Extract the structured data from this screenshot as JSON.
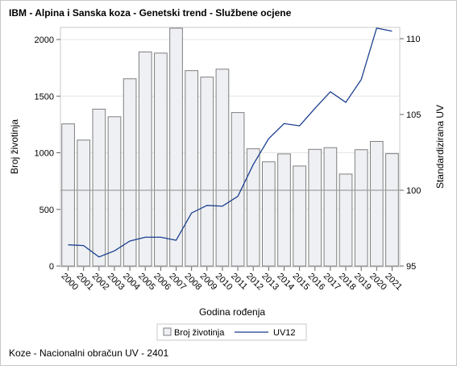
{
  "title": "IBM - Alpina i Sanska koza - Genetski trend - Službene ocjene",
  "footnote": "Koze - Nacionalni obračun UV - 2401",
  "chart_data": {
    "type": "bar",
    "categories": [
      "2000",
      "2001",
      "2002",
      "2003",
      "2004",
      "2005",
      "2006",
      "2007",
      "2008",
      "2009",
      "2010",
      "2011",
      "2012",
      "2013",
      "2014",
      "2015",
      "2016",
      "2017",
      "2018",
      "2019",
      "2020",
      "2021"
    ],
    "series": [
      {
        "name": "Broj životinja",
        "type": "bar",
        "axis": "left",
        "values": [
          1255,
          1112,
          1385,
          1318,
          1653,
          1890,
          1880,
          2100,
          1725,
          1668,
          1738,
          1355,
          1035,
          920,
          990,
          883,
          1030,
          1045,
          812,
          1027,
          1100,
          992
        ]
      },
      {
        "name": "UV12",
        "type": "line",
        "axis": "right",
        "values": [
          96.4,
          96.35,
          95.6,
          96.0,
          96.65,
          96.9,
          96.9,
          96.7,
          98.5,
          99.0,
          98.95,
          99.6,
          101.7,
          103.4,
          104.4,
          104.25,
          105.4,
          106.5,
          105.8,
          107.3,
          110.7,
          110.5
        ]
      }
    ],
    "xlabel": "Godina rođenja",
    "ylabel": "Broj životinja",
    "y2label": "Standardizirana UV",
    "ylim": [
      0,
      2150
    ],
    "yticks": [
      0,
      500,
      1000,
      1500,
      2000
    ],
    "y2lim": [
      95,
      111
    ],
    "y2ticks": [
      95,
      100,
      105,
      110
    ],
    "reference_line_y2": 100,
    "legend_position": "bottom"
  },
  "colors": {
    "bar_fill": "#eef0f4",
    "bar_stroke": "#7f7f7f",
    "line": "#1b3f8f",
    "ref_line": "#a0a0a0"
  }
}
